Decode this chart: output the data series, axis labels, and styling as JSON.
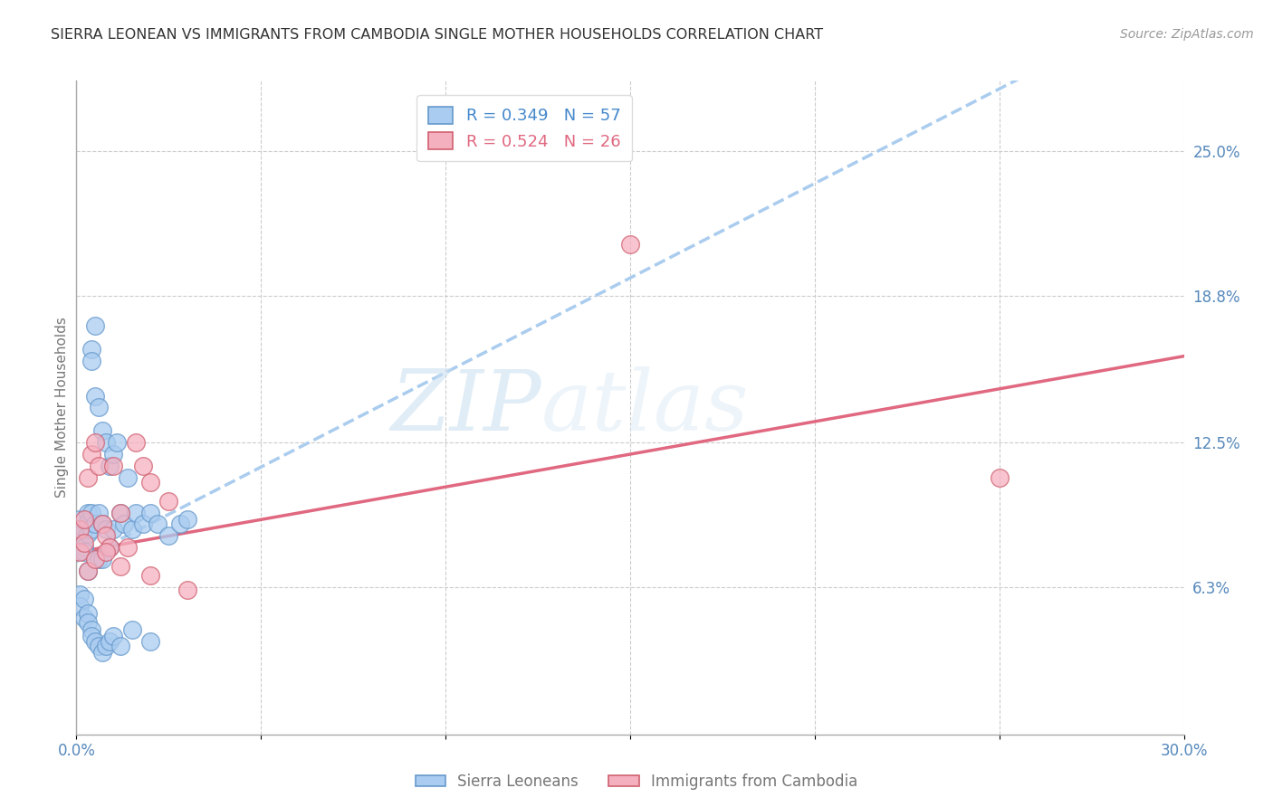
{
  "title": "SIERRA LEONEAN VS IMMIGRANTS FROM CAMBODIA SINGLE MOTHER HOUSEHOLDS CORRELATION CHART",
  "source": "Source: ZipAtlas.com",
  "ylabel": "Single Mother Households",
  "watermark_zip": "ZIP",
  "watermark_atlas": "atlas",
  "xlim": [
    0.0,
    0.3
  ],
  "ylim": [
    0.0,
    0.28
  ],
  "xticks": [
    0.0,
    0.05,
    0.1,
    0.15,
    0.2,
    0.25,
    0.3
  ],
  "xtick_labels": [
    "0.0%",
    "",
    "",
    "",
    "",
    "",
    "30.0%"
  ],
  "ytick_labels_right": [
    "6.3%",
    "12.5%",
    "18.8%",
    "25.0%"
  ],
  "ytick_vals_right": [
    0.063,
    0.125,
    0.188,
    0.25
  ],
  "gridline_color": "#cccccc",
  "background_color": "#ffffff",
  "blue_color": "#aaccf0",
  "pink_color": "#f5b0c0",
  "blue_edge_color": "#6699cc",
  "pink_edge_color": "#d06070",
  "blue_line_color": "#4488cc",
  "pink_line_color": "#e06880",
  "dashed_line_color": "#aaccee",
  "legend_blue_R": "0.349",
  "legend_blue_N": "57",
  "legend_pink_R": "0.524",
  "legend_pink_N": "26",
  "legend_text_blue": "#4488cc",
  "legend_text_pink": "#e06880",
  "sierra_x": [
    0.001,
    0.001,
    0.002,
    0.002,
    0.002,
    0.003,
    0.003,
    0.003,
    0.003,
    0.004,
    0.004,
    0.004,
    0.004,
    0.005,
    0.005,
    0.005,
    0.006,
    0.006,
    0.006,
    0.007,
    0.007,
    0.007,
    0.008,
    0.008,
    0.009,
    0.009,
    0.01,
    0.01,
    0.011,
    0.012,
    0.013,
    0.014,
    0.015,
    0.016,
    0.018,
    0.02,
    0.022,
    0.025,
    0.028,
    0.03,
    0.001,
    0.001,
    0.002,
    0.002,
    0.003,
    0.003,
    0.004,
    0.004,
    0.005,
    0.006,
    0.007,
    0.008,
    0.009,
    0.01,
    0.012,
    0.015,
    0.02
  ],
  "sierra_y": [
    0.092,
    0.085,
    0.088,
    0.08,
    0.078,
    0.095,
    0.091,
    0.086,
    0.07,
    0.165,
    0.16,
    0.095,
    0.088,
    0.175,
    0.145,
    0.09,
    0.14,
    0.095,
    0.075,
    0.13,
    0.09,
    0.075,
    0.125,
    0.088,
    0.115,
    0.08,
    0.12,
    0.088,
    0.125,
    0.095,
    0.09,
    0.11,
    0.088,
    0.095,
    0.09,
    0.095,
    0.09,
    0.085,
    0.09,
    0.092,
    0.06,
    0.055,
    0.058,
    0.05,
    0.052,
    0.048,
    0.045,
    0.042,
    0.04,
    0.038,
    0.035,
    0.038,
    0.04,
    0.042,
    0.038,
    0.045,
    0.04
  ],
  "cambodia_x": [
    0.001,
    0.002,
    0.003,
    0.004,
    0.005,
    0.006,
    0.007,
    0.008,
    0.009,
    0.01,
    0.012,
    0.014,
    0.016,
    0.018,
    0.02,
    0.025,
    0.001,
    0.002,
    0.003,
    0.005,
    0.008,
    0.012,
    0.02,
    0.03,
    0.15,
    0.25
  ],
  "cambodia_y": [
    0.088,
    0.092,
    0.11,
    0.12,
    0.125,
    0.115,
    0.09,
    0.085,
    0.08,
    0.115,
    0.095,
    0.08,
    0.125,
    0.115,
    0.108,
    0.1,
    0.078,
    0.082,
    0.07,
    0.075,
    0.078,
    0.072,
    0.068,
    0.062,
    0.21,
    0.11
  ],
  "sierra_trendline_x0": 0.0,
  "sierra_trendline_y0": 0.074,
  "sierra_trendline_x1": 0.1,
  "sierra_trendline_y1": 0.155,
  "cambodia_trendline_x0": 0.0,
  "cambodia_trendline_y0": 0.078,
  "cambodia_trendline_x1": 0.3,
  "cambodia_trendline_y1": 0.162
}
